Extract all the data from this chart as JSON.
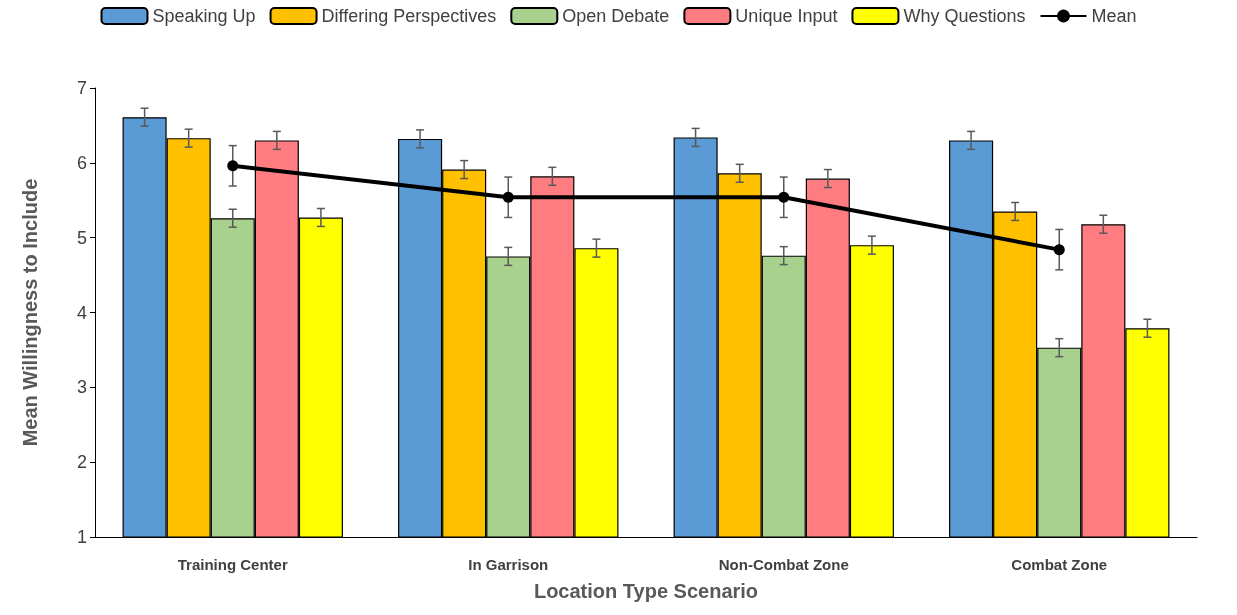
{
  "chart_data": {
    "type": "bar",
    "xlabel": "Location Type Scenario",
    "ylabel": "Mean Willingness to Include",
    "categories": [
      "Training Center",
      "In Garrison",
      "Non-Combat Zone",
      "Combat Zone"
    ],
    "series": [
      {
        "name": "Speaking Up",
        "color": "#5b9bd5",
        "values": [
          6.61,
          6.32,
          6.34,
          6.3
        ],
        "errors": [
          0.12,
          0.12,
          0.12,
          0.12
        ]
      },
      {
        "name": "Differing Perspectives",
        "color": "#ffc000",
        "values": [
          6.33,
          5.91,
          5.86,
          5.35
        ],
        "errors": [
          0.12,
          0.12,
          0.12,
          0.12
        ]
      },
      {
        "name": "Open Debate",
        "color": "#a9d18e",
        "values": [
          5.26,
          4.75,
          4.76,
          3.53
        ],
        "errors": [
          0.12,
          0.12,
          0.12,
          0.12
        ]
      },
      {
        "name": "Unique Input",
        "color": "#ff7c80",
        "values": [
          6.3,
          5.82,
          5.79,
          5.18
        ],
        "errors": [
          0.12,
          0.12,
          0.12,
          0.12
        ]
      },
      {
        "name": "Why Questions",
        "color": "#ffff00",
        "values": [
          5.27,
          4.86,
          4.9,
          3.79
        ],
        "errors": [
          0.12,
          0.12,
          0.12,
          0.12
        ]
      },
      {
        "name": "Mean",
        "type": "line",
        "color": "#000000",
        "marker": "circle",
        "values": [
          5.96,
          5.54,
          5.54,
          4.84
        ],
        "errors": [
          0.27,
          0.27,
          0.27,
          0.27
        ]
      }
    ],
    "ylim": [
      1,
      7
    ],
    "yticks": [
      1,
      2,
      3,
      4,
      5,
      6,
      7
    ],
    "grid": false,
    "legend": "top"
  }
}
